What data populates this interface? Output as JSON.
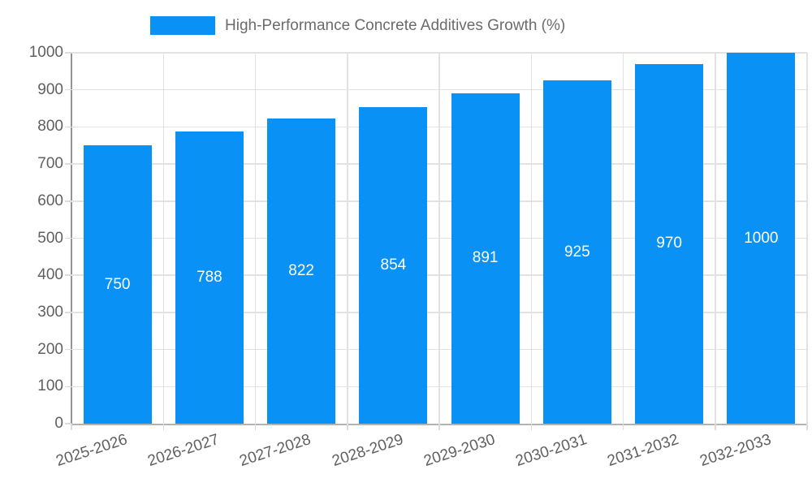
{
  "chart_data": {
    "type": "bar",
    "title": "High-Performance Concrete Additives Growth (%)",
    "categories": [
      "2025-2026",
      "2026-2027",
      "2027-2028",
      "2028-2029",
      "2029-2030",
      "2030-2031",
      "2031-2032",
      "2032-2033"
    ],
    "values": [
      750,
      788,
      822,
      854,
      891,
      925,
      970,
      1000
    ],
    "value_labels": [
      "750",
      "788",
      "822",
      "854",
      "891",
      "925",
      "970",
      "1000"
    ],
    "xlabel": "",
    "ylabel": "",
    "ylim": [
      0,
      1000
    ],
    "yticks": [
      0,
      100,
      200,
      300,
      400,
      500,
      600,
      700,
      800,
      900,
      1000
    ],
    "grid": true,
    "legend_position": "top",
    "colors": {
      "bar": "#0a91f5",
      "value_label": "#ffffff",
      "axis_text": "#606060",
      "legend_text": "#6b6b6b",
      "grid_line": "#e2e2e2",
      "axis_line": "#949494",
      "baseline": "#b3b3b3",
      "background": "#ffffff"
    }
  }
}
